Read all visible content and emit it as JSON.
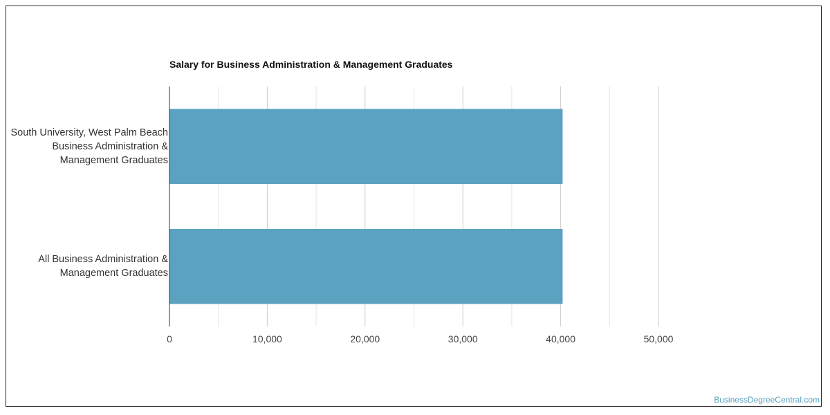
{
  "chart_data": {
    "type": "bar",
    "orientation": "horizontal",
    "title": "Salary for Business Administration & Management Graduates",
    "categories": [
      [
        "South University, West Palm Beach",
        "Business Administration &",
        "Management Graduates"
      ],
      [
        "All Business Administration &",
        "Management Graduates"
      ]
    ],
    "values": [
      40200,
      40200
    ],
    "xlim": [
      0,
      50000
    ],
    "xticks": [
      0,
      10000,
      20000,
      30000,
      40000,
      50000
    ],
    "xtick_labels": [
      "0",
      "10,000",
      "20,000",
      "30,000",
      "40,000",
      "50,000"
    ],
    "xlabel": "",
    "ylabel": "",
    "grid": true,
    "bar_color": "#5ba2c0"
  },
  "watermark": "BusinessDegreeCentral.com"
}
